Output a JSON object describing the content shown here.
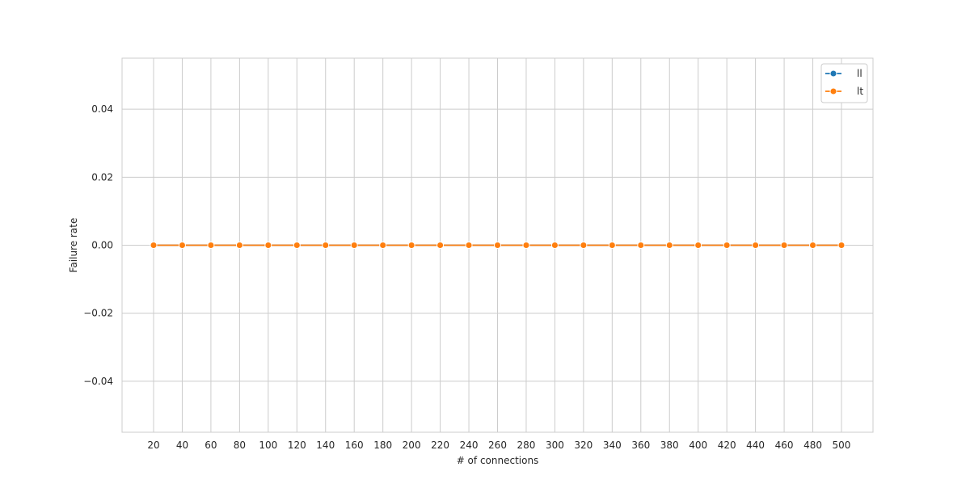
{
  "chart_data": {
    "type": "line",
    "title": "",
    "xlabel": "# of connections",
    "ylabel": "Failure rate",
    "x": [
      20,
      40,
      60,
      80,
      100,
      120,
      140,
      160,
      180,
      200,
      220,
      240,
      260,
      280,
      300,
      320,
      340,
      360,
      380,
      400,
      420,
      440,
      460,
      480,
      500
    ],
    "xticks": [
      "20",
      "40",
      "60",
      "80",
      "100",
      "120",
      "140",
      "160",
      "180",
      "200",
      "220",
      "240",
      "260",
      "280",
      "300",
      "320",
      "340",
      "360",
      "380",
      "400",
      "420",
      "440",
      "460",
      "480",
      "500"
    ],
    "yticks": [
      "−0.04",
      "−0.02",
      "0.00",
      "0.02",
      "0.04"
    ],
    "ytick_values": [
      -0.04,
      -0.02,
      0.0,
      0.02,
      0.04
    ],
    "ylim": [
      -0.055,
      0.055
    ],
    "xlim": [
      -1.1,
      25.1
    ],
    "grid": true,
    "legend_position": "top-right",
    "series": [
      {
        "name": "ll",
        "color": "#1f77b4",
        "marker": "circle",
        "values": [
          0,
          0,
          0,
          0,
          0,
          0,
          0,
          0,
          0,
          0,
          0,
          0,
          0,
          0,
          0,
          0,
          0,
          0,
          0,
          0,
          0,
          0,
          0,
          0,
          0
        ]
      },
      {
        "name": "lt",
        "color": "#ff7f0e",
        "marker": "circle",
        "values": [
          0,
          0,
          0,
          0,
          0,
          0,
          0,
          0,
          0,
          0,
          0,
          0,
          0,
          0,
          0,
          0,
          0,
          0,
          0,
          0,
          0,
          0,
          0,
          0,
          0
        ]
      }
    ]
  }
}
